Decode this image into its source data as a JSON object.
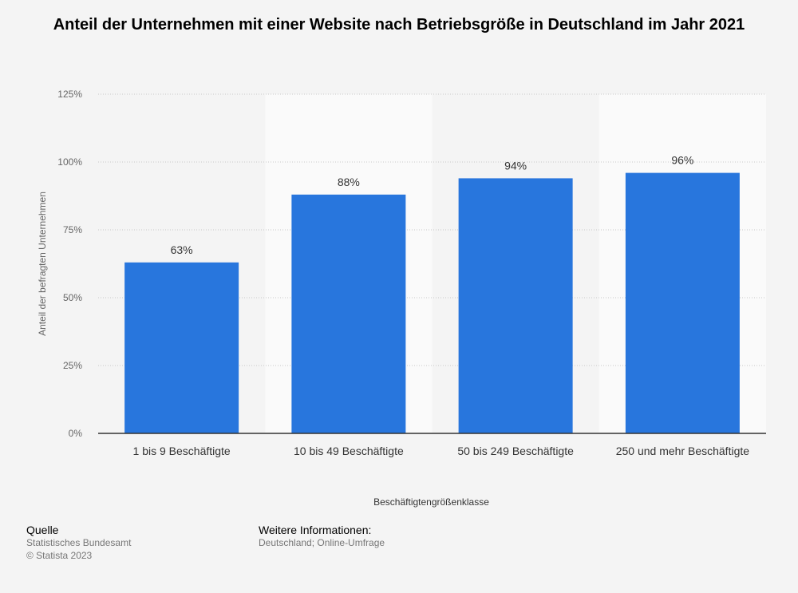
{
  "chart_data": {
    "type": "bar",
    "title": "Anteil der Unternehmen mit einer Website nach Betriebsgröße in Deutschland im Jahr 2021",
    "xlabel": "Beschäftigtengrößenklasse",
    "ylabel": "Anteil der befragten Unternehmen",
    "categories": [
      "1 bis 9 Beschäftigte",
      "10 bis 49 Beschäftigte",
      "50 bis 249 Beschäftigte",
      "250 und mehr Beschäftigte"
    ],
    "values": [
      63,
      88,
      94,
      96
    ],
    "value_labels": [
      "63%",
      "88%",
      "94%",
      "96%"
    ],
    "ylim": [
      0,
      125
    ],
    "yticks": [
      0,
      25,
      50,
      75,
      100,
      125
    ],
    "ytick_labels": [
      "0%",
      "25%",
      "50%",
      "75%",
      "100%",
      "125%"
    ],
    "bar_color": "#2876dd",
    "grid": true
  },
  "footer": {
    "source_heading": "Quelle",
    "source_lines": [
      "Statistisches Bundesamt",
      "© Statista 2023"
    ],
    "info_heading": "Weitere Informationen:",
    "info_lines": [
      "Deutschland; Online-Umfrage"
    ]
  }
}
